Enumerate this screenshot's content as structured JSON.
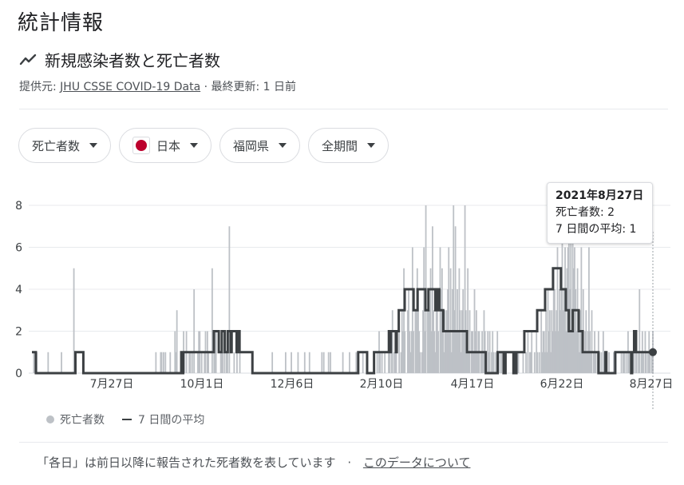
{
  "header": {
    "section_title": "統計情報",
    "subtitle": "新規感染者数と死亡者数",
    "source_prefix": "提供元:",
    "source_link": "JHU CSSE COVID-19 Data",
    "updated": "· 最終更新: 1 日前"
  },
  "filters": {
    "metric": "死亡者数",
    "country": "日本",
    "region": "福岡県",
    "period": "全期間"
  },
  "tooltip": {
    "date": "2021年8月27日",
    "deaths": "死亡者数: 2",
    "avg": "7 日間の平均: 1"
  },
  "legend": {
    "deaths": "死亡者数",
    "avg": "7 日間の平均"
  },
  "footnote": {
    "text": "「各日」は前日以降に報告された死者数を表しています",
    "sep": "·",
    "link": "このデータについて"
  },
  "colors": {
    "bars": "#bdc1c6",
    "avg_line": "#3c4043",
    "grid": "#e8eaed"
  },
  "chart_data": {
    "type": "bar",
    "title": "",
    "ylim": [
      0,
      8
    ],
    "y_ticks": [
      0,
      2,
      4,
      6,
      8
    ],
    "x_ticks": [
      "7月27日",
      "10月1日",
      "12月6日",
      "2月10日",
      "4月17日",
      "6月22日",
      "8月27日"
    ],
    "x_range": [
      "2020-05-22",
      "2021-08-27"
    ],
    "grid": true,
    "legend_position": "bottom-left",
    "series": [
      {
        "name": "死亡者数",
        "style": "bars",
        "values": [
          0,
          0,
          1,
          1,
          0,
          1,
          0,
          0,
          0,
          0,
          0,
          0,
          0,
          0,
          0,
          0,
          0,
          1,
          0,
          0,
          0,
          0,
          0,
          0,
          0,
          0,
          0,
          0,
          0,
          0,
          0,
          1,
          0,
          0,
          0,
          0,
          0,
          0,
          0,
          0,
          0,
          0,
          0,
          0,
          5,
          0,
          1,
          0,
          0,
          0,
          0,
          0,
          0,
          0,
          0,
          0,
          0,
          0,
          0,
          0,
          0,
          0,
          0,
          0,
          0,
          0,
          0,
          0,
          0,
          0,
          0,
          0,
          0,
          0,
          0,
          0,
          0,
          0,
          0,
          0,
          0,
          0,
          0,
          0,
          0,
          0,
          0,
          0,
          0,
          0,
          0,
          0,
          0,
          0,
          0,
          0,
          0,
          0,
          0,
          0,
          0,
          0,
          0,
          0,
          0,
          0,
          0,
          0,
          0,
          0,
          0,
          0,
          0,
          0,
          0,
          0,
          0,
          0,
          0,
          0,
          0,
          0,
          0,
          0,
          0,
          0,
          0,
          0,
          0,
          0,
          1,
          0,
          0,
          0,
          0,
          1,
          1,
          0,
          1,
          0,
          1,
          0,
          0,
          0,
          0,
          1,
          0,
          0,
          0,
          0,
          2,
          1,
          3,
          0,
          0,
          0,
          0,
          1,
          0,
          2,
          1,
          0,
          2,
          0,
          0,
          1,
          1,
          0,
          1,
          0,
          4,
          0,
          0,
          0,
          1,
          2,
          2,
          0,
          1,
          0,
          0,
          1,
          2,
          0,
          2,
          1,
          0,
          0,
          0,
          5,
          0,
          1,
          2,
          2,
          0,
          0,
          0,
          0,
          1,
          2,
          1,
          0,
          2,
          0,
          1,
          1,
          0,
          7,
          0,
          0,
          0,
          0,
          1,
          0,
          0,
          1,
          0,
          0,
          1,
          0,
          0,
          0,
          0,
          0,
          0,
          0,
          0,
          0,
          0,
          0,
          0,
          0,
          0,
          0,
          0,
          0,
          0,
          0,
          0,
          0,
          0,
          0,
          0,
          0,
          0,
          0,
          0,
          0,
          0,
          0,
          0,
          0,
          1,
          0,
          0,
          0,
          0,
          0,
          0,
          0,
          0,
          0,
          0,
          0,
          0,
          0,
          1,
          0,
          0,
          0,
          0,
          0,
          1,
          0,
          0,
          0,
          0,
          0,
          0,
          1,
          0,
          0,
          0,
          0,
          0,
          0,
          1,
          0,
          0,
          0,
          0,
          1,
          0,
          0,
          0,
          0,
          0,
          0,
          0,
          0,
          0,
          0,
          0,
          0,
          1,
          0,
          1,
          0,
          0,
          0,
          0,
          1,
          0,
          1,
          0,
          0,
          0,
          0,
          0,
          0,
          0,
          0,
          0,
          0,
          0,
          0,
          1,
          0,
          0,
          0,
          0,
          0,
          0,
          1,
          0,
          0,
          0,
          0,
          0,
          0,
          1,
          0,
          0,
          0,
          0,
          0,
          0,
          1,
          0,
          0,
          0,
          1,
          0,
          0,
          0,
          0,
          0,
          0,
          0,
          1,
          0,
          0,
          1,
          0,
          2,
          1,
          0,
          1,
          0,
          0,
          1,
          0,
          0,
          0,
          1,
          2,
          0,
          1,
          3,
          0,
          1,
          2,
          1,
          0,
          0,
          2,
          0,
          1,
          3,
          2,
          5,
          2,
          0,
          0,
          3,
          4,
          2,
          1,
          2,
          6,
          2,
          0,
          3,
          3,
          5,
          4,
          2,
          1,
          0,
          1,
          3,
          6,
          2,
          8,
          0,
          3,
          4,
          3,
          5,
          2,
          7,
          3,
          2,
          1,
          4,
          3,
          2,
          0,
          6,
          4,
          5,
          3,
          1,
          3,
          2,
          3,
          4,
          6,
          2,
          5,
          1,
          4,
          8,
          3,
          7,
          2,
          4,
          2,
          5,
          3,
          1,
          3,
          4,
          2,
          8,
          3,
          2,
          5,
          1,
          3,
          0,
          2,
          2,
          1,
          4,
          2,
          3,
          1,
          2,
          2,
          0,
          1,
          2,
          1,
          3,
          2,
          1,
          0,
          2,
          1,
          2,
          0,
          1,
          2,
          1,
          0,
          1,
          0,
          2,
          1,
          1,
          0,
          1,
          0,
          0,
          0,
          0,
          0,
          0,
          0,
          0,
          0,
          0,
          0,
          0,
          1,
          0,
          0,
          0,
          0,
          1,
          0,
          0,
          0,
          0,
          1,
          0,
          0,
          1,
          0,
          2,
          0,
          1,
          1,
          2,
          0,
          0,
          1,
          0,
          2,
          1,
          0,
          1,
          0,
          3,
          1,
          2,
          2,
          1,
          3,
          1,
          4,
          2,
          3,
          1,
          3,
          2,
          5,
          4,
          2,
          3,
          6,
          2,
          4,
          3,
          5,
          7,
          3,
          4,
          6,
          2,
          5,
          6,
          8,
          4,
          7,
          3,
          8,
          5,
          6,
          4,
          2,
          5,
          3,
          1,
          3,
          6,
          2,
          4,
          1,
          2,
          3,
          1,
          2,
          6,
          2,
          1,
          3,
          0,
          1,
          2,
          1,
          0,
          1,
          2,
          1,
          0,
          1,
          0,
          2,
          1,
          0,
          1,
          0,
          0,
          1,
          0,
          0,
          0,
          0,
          1,
          0,
          0,
          0,
          0,
          0,
          0,
          0,
          1,
          0,
          1,
          1,
          0,
          1,
          0,
          2,
          1,
          0,
          1,
          1,
          0,
          1,
          0,
          2,
          1,
          0,
          1,
          4,
          0,
          1,
          2,
          1,
          0,
          2,
          1,
          0,
          1,
          2,
          1,
          0,
          1,
          2
        ]
      },
      {
        "name": "7 日間の平均",
        "style": "line",
        "values": [
          1,
          1,
          1,
          1,
          0,
          0,
          0,
          0,
          0,
          0,
          0,
          0,
          0,
          0,
          0,
          0,
          0,
          0,
          0,
          0,
          0,
          0,
          0,
          0,
          0,
          0,
          0,
          0,
          0,
          0,
          0,
          0,
          0,
          0,
          0,
          0,
          0,
          0,
          0,
          0,
          0,
          0,
          0,
          0,
          1,
          1,
          1,
          1,
          1,
          1,
          1,
          1,
          0,
          0,
          0,
          0,
          0,
          0,
          0,
          0,
          0,
          0,
          0,
          0,
          0,
          0,
          0,
          0,
          0,
          0,
          0,
          0,
          0,
          0,
          0,
          0,
          0,
          0,
          0,
          0,
          0,
          0,
          0,
          0,
          0,
          0,
          0,
          0,
          0,
          0,
          0,
          0,
          0,
          0,
          0,
          0,
          0,
          0,
          0,
          0,
          0,
          0,
          0,
          0,
          0,
          0,
          0,
          0,
          0,
          0,
          0,
          0,
          0,
          0,
          0,
          0,
          0,
          0,
          0,
          0,
          0,
          0,
          0,
          0,
          0,
          0,
          0,
          0,
          0,
          0,
          0,
          0,
          0,
          0,
          0,
          0,
          0,
          0,
          0,
          0,
          0,
          0,
          0,
          0,
          0,
          0,
          0,
          0,
          0,
          0,
          0,
          1,
          0,
          1,
          1,
          1,
          1,
          1,
          1,
          1,
          1,
          1,
          1,
          1,
          1,
          1,
          1,
          1,
          1,
          1,
          1,
          1,
          1,
          1,
          1,
          1,
          1,
          1,
          1,
          1,
          1,
          1,
          1,
          1,
          2,
          2,
          2,
          2,
          2,
          1,
          1,
          1,
          2,
          2,
          2,
          1,
          1,
          1,
          2,
          2,
          2,
          1,
          2,
          2,
          2,
          2,
          2,
          1,
          1,
          2,
          1,
          1,
          1,
          1,
          1,
          1,
          1,
          1,
          1,
          1,
          1,
          1,
          1,
          0,
          0,
          0,
          0,
          0,
          0,
          0,
          0,
          0,
          0,
          0,
          0,
          0,
          0,
          0,
          0,
          0,
          0,
          0,
          0,
          0,
          0,
          0,
          0,
          0,
          0,
          0,
          0,
          0,
          0,
          0,
          0,
          0,
          0,
          0,
          0,
          0,
          0,
          0,
          0,
          0,
          0,
          0,
          0,
          0,
          0,
          0,
          0,
          0,
          0,
          0,
          0,
          0,
          0,
          0,
          0,
          0,
          0,
          0,
          0,
          0,
          0,
          0,
          0,
          0,
          0,
          0,
          0,
          0,
          0,
          0,
          0,
          0,
          0,
          0,
          0,
          0,
          0,
          0,
          0,
          0,
          0,
          0,
          0,
          0,
          0,
          0,
          0,
          0,
          0,
          0,
          0,
          0,
          0,
          0,
          0,
          0,
          0,
          0,
          0,
          0,
          0,
          0,
          0,
          0,
          0,
          0,
          1,
          1,
          1,
          1,
          1,
          1,
          1,
          1,
          1,
          0,
          0,
          0,
          0,
          0,
          0,
          0,
          1,
          1,
          1,
          1,
          1,
          1,
          1,
          1,
          1,
          1,
          1,
          1,
          1,
          1,
          1,
          2,
          1,
          2,
          2,
          2,
          2,
          2,
          1,
          2,
          2,
          3,
          3,
          3,
          3,
          3,
          3,
          4,
          4,
          4,
          4,
          4,
          4,
          4,
          4,
          4,
          3,
          3,
          3,
          3,
          4,
          4,
          4,
          4,
          4,
          4,
          4,
          4,
          3,
          3,
          3,
          4,
          4,
          4,
          4,
          4,
          4,
          4,
          3,
          3,
          4,
          4,
          3,
          3,
          3,
          3,
          2,
          2,
          2,
          2,
          2,
          2,
          2,
          2,
          2,
          2,
          2,
          2,
          2,
          2,
          2,
          2,
          2,
          2,
          2,
          2,
          2,
          2,
          2,
          2,
          1,
          1,
          1,
          1,
          1,
          1,
          1,
          1,
          1,
          1,
          1,
          1,
          1,
          1,
          1,
          1,
          1,
          1,
          1,
          0,
          0,
          0,
          0,
          0,
          0,
          0,
          0,
          0,
          0,
          0,
          0,
          1,
          1,
          1,
          1,
          1,
          1,
          0,
          0,
          1,
          1,
          1,
          1,
          1,
          1,
          1,
          1,
          0,
          1,
          0,
          1,
          1,
          1,
          1,
          1,
          1,
          1,
          1,
          2,
          2,
          2,
          2,
          2,
          2,
          2,
          2,
          2,
          2,
          2,
          2,
          2,
          3,
          3,
          3,
          3,
          3,
          3,
          3,
          3,
          4,
          4,
          4,
          4,
          4,
          4,
          4,
          4,
          5,
          5,
          5,
          5,
          5,
          5,
          5,
          5,
          4,
          4,
          4,
          4,
          4,
          3,
          3,
          3,
          2,
          2,
          2,
          2,
          3,
          3,
          3,
          3,
          3,
          3,
          2,
          2,
          2,
          2,
          1,
          1,
          1,
          1,
          1,
          1,
          1,
          1,
          1,
          1,
          1,
          1,
          1,
          1,
          1,
          1,
          0,
          0,
          0,
          0,
          0,
          0,
          0,
          1,
          0,
          0,
          0,
          0,
          0,
          0,
          0,
          0,
          0,
          1,
          1,
          1,
          1,
          1,
          1,
          1,
          1,
          1,
          1,
          1,
          1,
          1,
          1,
          1,
          1,
          0,
          1,
          1,
          2,
          2,
          1,
          1,
          1,
          1,
          1,
          1,
          1,
          1,
          1,
          1,
          1,
          1,
          1,
          1,
          1,
          1,
          1,
          1
        ]
      }
    ]
  }
}
